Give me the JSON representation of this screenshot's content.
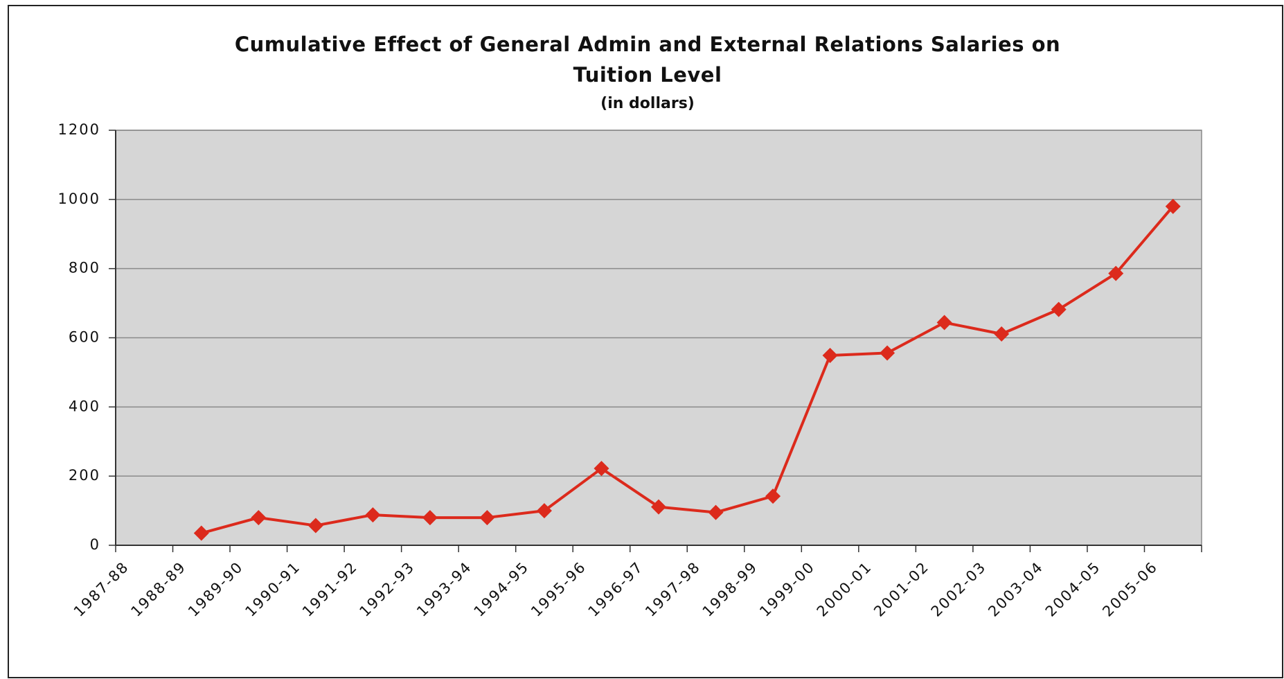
{
  "chart_data": {
    "type": "line",
    "title": [
      "Cumulative Effect of General Admin and External Relations Salaries  on",
      "Tuition Level"
    ],
    "subtitle": "(in dollars)",
    "categories": [
      "1987-88",
      "1988-89",
      "1989-90",
      "1990-91",
      "1991-92",
      "1992-93",
      "1993-94",
      "1994-95",
      "1995-96",
      "1996-97",
      "1997-98",
      "1998-99",
      "1999-00",
      "2000-01",
      "2001-02",
      "2002-03",
      "2003-04",
      "2004-05",
      "2005-06"
    ],
    "values": [
      null,
      35,
      80,
      57,
      88,
      80,
      80,
      100,
      222,
      111,
      95,
      142,
      549,
      556,
      644,
      611,
      682,
      786,
      980
    ],
    "color": "#dc2a1c",
    "ylim": [
      0,
      1200
    ],
    "yticks": [
      0,
      200,
      400,
      600,
      800,
      1000,
      1200
    ],
    "grid": true
  }
}
